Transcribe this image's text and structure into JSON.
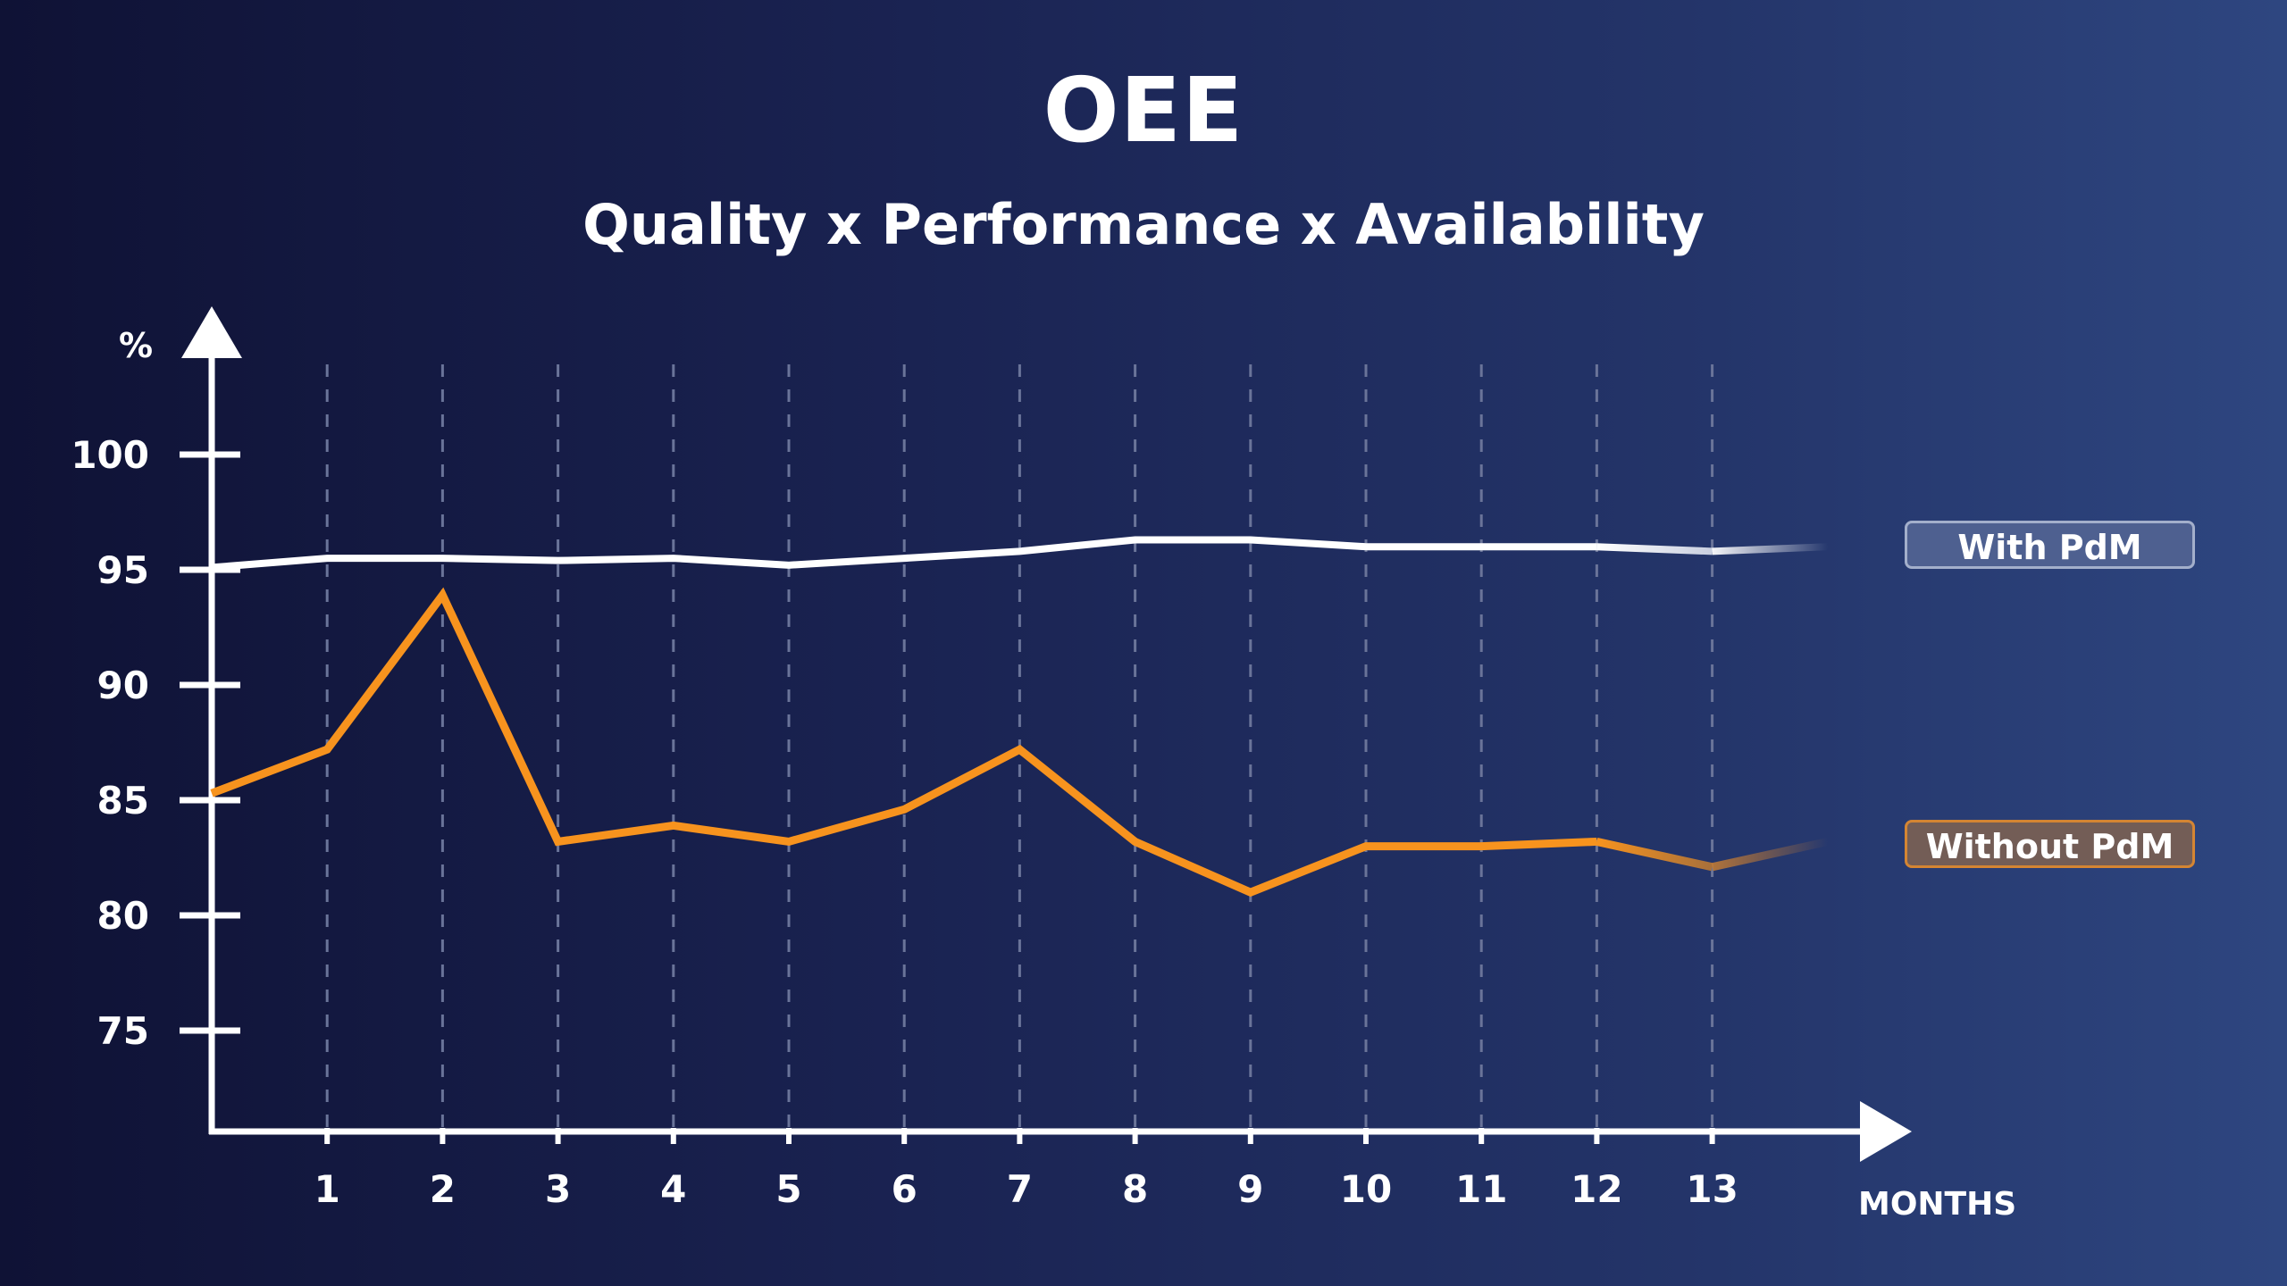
{
  "title": "OEE",
  "subtitle": "Quality x Performance x Availability",
  "chart_data": {
    "type": "line",
    "title": "OEE",
    "subtitle": "Quality x Performance x Availability",
    "xlabel": "MONTHS",
    "ylabel": "%",
    "x": [
      0,
      1,
      2,
      3,
      4,
      5,
      6,
      7,
      8,
      9,
      10,
      11,
      12,
      13,
      14
    ],
    "x_tick_labels": [
      "1",
      "2",
      "3",
      "4",
      "5",
      "6",
      "7",
      "8",
      "9",
      "10",
      "11",
      "12",
      "13"
    ],
    "y_tick_labels": [
      "100",
      "95",
      "90",
      "85",
      "80",
      "75"
    ],
    "y_ticks": [
      100,
      95,
      90,
      85,
      80,
      75
    ],
    "ylim": [
      72.5,
      104
    ],
    "xlim": [
      0,
      14.7
    ],
    "grid": "vertical dashed at each month",
    "legend": "right",
    "series": [
      {
        "name": "With PdM",
        "color": "#ffffff",
        "values": [
          95.1,
          95.5,
          95.5,
          95.4,
          95.5,
          95.2,
          95.5,
          95.8,
          96.3,
          96.3,
          96.0,
          96.0,
          96.0,
          95.8,
          96.0
        ]
      },
      {
        "name": "Without PdM",
        "color": "#f7931e",
        "values": [
          85.3,
          87.2,
          93.9,
          83.2,
          83.9,
          83.2,
          84.6,
          87.2,
          83.2,
          81.0,
          83.0,
          83.0,
          83.2,
          82.1,
          83.2
        ]
      }
    ]
  }
}
